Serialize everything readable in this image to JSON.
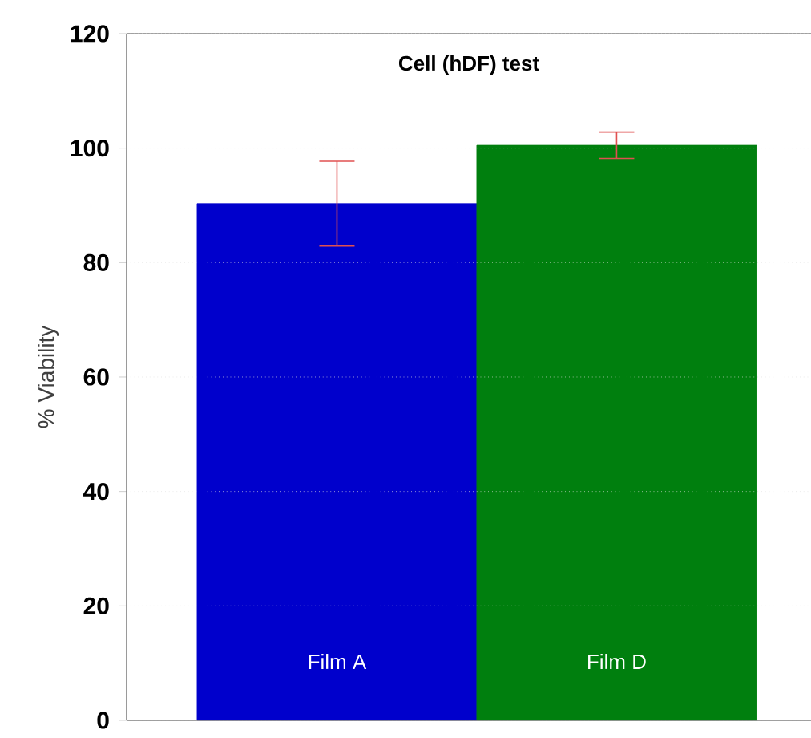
{
  "chart_data": {
    "type": "bar",
    "title": "Cell (hDF) test",
    "ylabel": "% Viability",
    "categories": [
      "Film A",
      "Film D"
    ],
    "values": [
      90.3,
      100.5
    ],
    "errors": [
      7.4,
      2.3
    ],
    "colors": [
      "#0000cc",
      "#007f0e"
    ],
    "ylim": [
      0,
      120
    ],
    "yticks": [
      0,
      20,
      40,
      60,
      80,
      100,
      120
    ],
    "grid": "y"
  }
}
